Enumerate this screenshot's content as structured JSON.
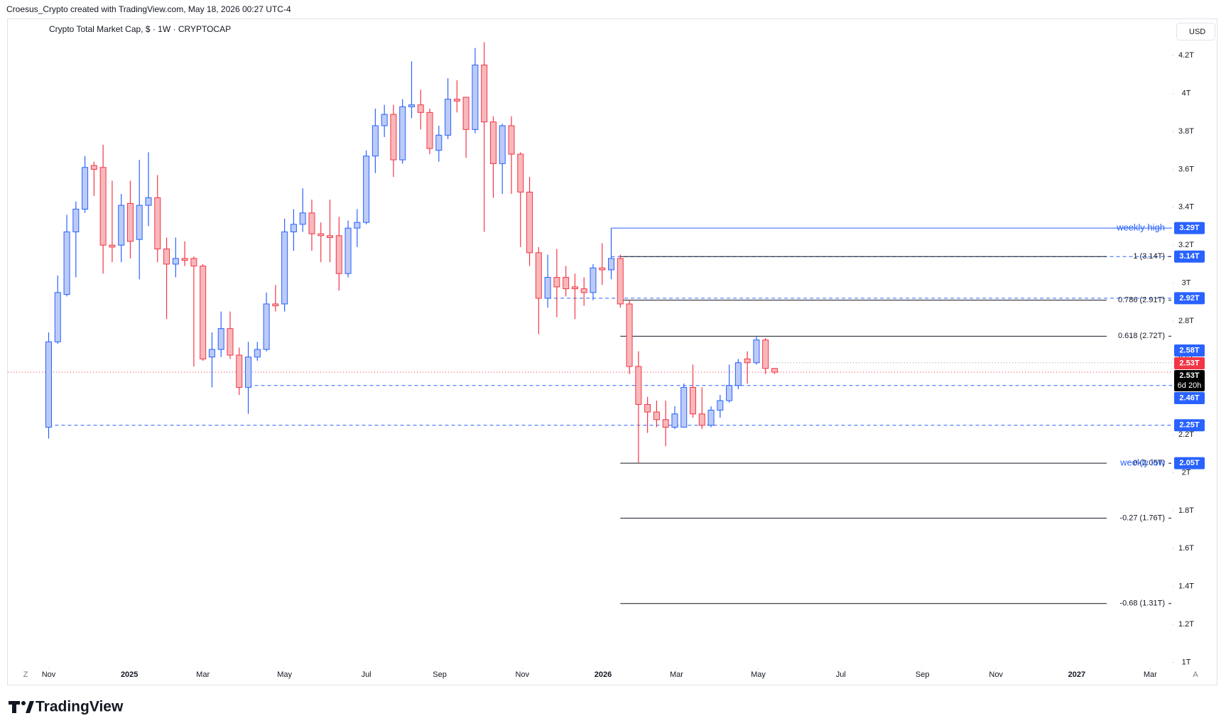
{
  "chart_data": {
    "type": "candlestick",
    "attribution": "Croesus_Crypto created with TradingView.com, May 18, 2026 00:27 UTC-4",
    "title": "Crypto Total Market Cap, $ · 1W · CRYPTOCAP",
    "currency": "USD",
    "z_label": "Z",
    "auto_label": "A",
    "brand": "TradingView",
    "up_color": "#2962ff",
    "up_fill": "#bccbf6",
    "down_color": "#f23645",
    "down_fill": "#f8b8bb",
    "grid": false,
    "xlim": [
      -4.5,
      123.8
    ],
    "xticks": [
      {
        "value": 0,
        "label": "Nov"
      },
      {
        "value": 8.9,
        "label": "2025"
      },
      {
        "value": 17,
        "label": "Mar"
      },
      {
        "value": 26,
        "label": "May"
      },
      {
        "value": 35,
        "label": "Jul"
      },
      {
        "value": 43.1,
        "label": "Sep"
      },
      {
        "value": 52.2,
        "label": "Nov"
      },
      {
        "value": 61.1,
        "label": "2026"
      },
      {
        "value": 69.2,
        "label": "Mar"
      },
      {
        "value": 78.2,
        "label": "May"
      },
      {
        "value": 87.3,
        "label": "Jul"
      },
      {
        "value": 96.3,
        "label": "Sep"
      },
      {
        "value": 104.4,
        "label": "Nov"
      },
      {
        "value": 113.3,
        "label": "2027"
      },
      {
        "value": 121.4,
        "label": "Mar"
      }
    ],
    "ylim": [
      0.97,
      4.39
    ],
    "yticks": [
      {
        "value": 1,
        "label": "1T"
      },
      {
        "value": 1.2,
        "label": "1.2T"
      },
      {
        "value": 1.4,
        "label": "1.4T"
      },
      {
        "value": 1.6,
        "label": "1.6T"
      },
      {
        "value": 1.8,
        "label": "1.8T"
      },
      {
        "value": 2,
        "label": "2T"
      },
      {
        "value": 2.2,
        "label": "2.2T"
      },
      {
        "value": 2.4,
        "label": "2.4T"
      },
      {
        "value": 2.6,
        "label": "2.6T"
      },
      {
        "value": 2.8,
        "label": "2.8T"
      },
      {
        "value": 3,
        "label": "3T"
      },
      {
        "value": 3.2,
        "label": "3.2T"
      },
      {
        "value": 3.4,
        "label": "3.4T"
      },
      {
        "value": 3.6,
        "label": "3.6T"
      },
      {
        "value": 3.8,
        "label": "3.8T"
      },
      {
        "value": 4,
        "label": "4T"
      },
      {
        "value": 4.2,
        "label": "4.2T"
      }
    ],
    "candles": {
      "x": [
        0,
        1,
        2,
        3,
        4,
        5,
        6,
        7,
        8,
        9,
        10,
        11,
        12,
        13,
        14,
        15,
        16,
        17,
        18,
        19,
        20,
        21,
        22,
        23,
        24,
        25,
        26,
        27,
        28,
        29,
        30,
        31,
        32,
        33,
        34,
        35,
        36,
        37,
        38,
        39,
        40,
        41,
        42,
        43,
        44,
        45,
        46,
        47,
        48,
        49,
        50,
        51,
        52,
        53,
        54,
        55,
        56,
        57,
        58,
        59,
        60,
        61,
        62,
        63,
        64,
        65,
        66,
        67,
        68,
        69,
        70,
        71,
        72,
        73,
        74,
        75,
        76,
        77,
        78,
        79,
        80
      ],
      "open": [
        2.24,
        2.69,
        2.94,
        3.27,
        3.39,
        3.62,
        3.61,
        3.2,
        3.2,
        3.42,
        3.23,
        3.41,
        3.45,
        3.18,
        3.1,
        3.13,
        3.13,
        3.09,
        2.61,
        2.65,
        2.76,
        2.62,
        2.45,
        2.61,
        2.65,
        2.89,
        2.89,
        3.27,
        3.31,
        3.37,
        3.26,
        3.25,
        3.25,
        3.05,
        3.29,
        3.32,
        3.67,
        3.83,
        3.89,
        3.65,
        3.93,
        3.94,
        3.9,
        3.7,
        3.78,
        3.97,
        3.98,
        3.81,
        4.15,
        3.85,
        3.63,
        3.83,
        3.68,
        3.48,
        3.16,
        2.92,
        3.03,
        3.03,
        2.98,
        2.97,
        2.95,
        3.08,
        3.07,
        3.13,
        2.89,
        2.56,
        2.36,
        2.32,
        2.28,
        2.24,
        2.24,
        2.45,
        2.31,
        2.25,
        2.33,
        2.38,
        2.46,
        2.6,
        2.58,
        2.7,
        2.55
      ],
      "high": [
        2.74,
        3.04,
        3.36,
        3.43,
        3.67,
        3.64,
        3.73,
        3.54,
        3.47,
        3.54,
        3.65,
        3.69,
        3.57,
        3.24,
        3.24,
        3.22,
        3.14,
        3.1,
        2.74,
        2.85,
        2.85,
        2.66,
        2.69,
        2.69,
        2.95,
        2.99,
        3.34,
        3.39,
        3.5,
        3.44,
        3.32,
        3.44,
        3.35,
        3.33,
        3.39,
        3.7,
        3.92,
        3.94,
        3.94,
        3.97,
        4.17,
        4.02,
        3.92,
        3.83,
        4.08,
        4.07,
        3.98,
        4.24,
        4.27,
        3.88,
        3.84,
        3.88,
        3.69,
        3.56,
        3.19,
        3.15,
        3.18,
        3.09,
        3.05,
        3.03,
        3.1,
        3.21,
        3.29,
        3.15,
        2.91,
        2.64,
        2.4,
        2.38,
        2.38,
        2.35,
        2.47,
        2.57,
        2.45,
        2.35,
        2.41,
        2.57,
        2.6,
        2.64,
        2.72,
        2.71,
        2.55
      ],
      "low": [
        2.18,
        2.68,
        2.93,
        3.03,
        3.37,
        3.46,
        3.05,
        3.11,
        3.11,
        3.13,
        3.02,
        3.3,
        3.11,
        2.81,
        3.03,
        3.09,
        2.56,
        2.59,
        2.45,
        2.61,
        2.6,
        2.41,
        2.31,
        2.59,
        2.64,
        2.85,
        2.85,
        3.17,
        3.27,
        3.17,
        3.11,
        3.11,
        2.96,
        3.03,
        3.19,
        3.31,
        3.58,
        3.77,
        3.56,
        3.63,
        3.87,
        3.81,
        3.68,
        3.64,
        3.76,
        3.9,
        3.66,
        3.79,
        3.27,
        3.45,
        3.47,
        3.47,
        3.19,
        3.09,
        2.73,
        2.87,
        2.82,
        2.93,
        2.81,
        2.88,
        2.91,
        2.99,
        3.02,
        2.87,
        2.52,
        2.05,
        2.21,
        2.24,
        2.14,
        2.23,
        2.24,
        2.29,
        2.23,
        2.24,
        2.29,
        2.37,
        2.44,
        2.47,
        2.57,
        2.52,
        2.52
      ],
      "close": [
        2.69,
        2.95,
        3.27,
        3.39,
        3.61,
        3.6,
        3.2,
        3.19,
        3.41,
        3.22,
        3.41,
        3.45,
        3.18,
        3.1,
        3.13,
        3.12,
        3.09,
        2.6,
        2.65,
        2.76,
        2.62,
        2.45,
        2.61,
        2.65,
        2.89,
        2.88,
        3.27,
        3.31,
        3.37,
        3.26,
        3.25,
        3.24,
        3.05,
        3.29,
        3.32,
        3.67,
        3.83,
        3.89,
        3.65,
        3.93,
        3.94,
        3.9,
        3.71,
        3.78,
        3.97,
        3.96,
        3.81,
        4.15,
        3.85,
        3.63,
        3.83,
        3.68,
        3.48,
        3.16,
        2.92,
        3.03,
        2.98,
        2.97,
        2.97,
        2.95,
        3.08,
        3.07,
        3.13,
        2.89,
        2.56,
        2.36,
        2.32,
        2.28,
        2.24,
        2.31,
        2.45,
        2.31,
        2.25,
        2.33,
        2.38,
        2.46,
        2.58,
        2.58,
        2.7,
        2.55,
        2.53
      ]
    },
    "horizontal_lines": [
      {
        "value": 3.29,
        "from": 62,
        "color": "#2962ff",
        "style": "solid"
      },
      {
        "value": 3.14,
        "from": 62,
        "color": "#2962ff",
        "style": "dashed"
      },
      {
        "value": 2.92,
        "from": 55,
        "color": "#2962ff",
        "style": "dashed"
      },
      {
        "value": 2.46,
        "from": 22,
        "color": "#2962ff",
        "style": "dashed"
      },
      {
        "value": 2.25,
        "from": 0,
        "color": "#2962ff",
        "style": "dashed"
      },
      {
        "value": 2.58,
        "from": 78,
        "color": "#9598a1",
        "style": "dotted"
      },
      {
        "value": 2.53,
        "from": -4.5,
        "color": "#f23645",
        "style": "dotted"
      }
    ],
    "fib_from": 63,
    "fib_to": 116.6,
    "fib_levels": [
      {
        "value": 3.14,
        "label": "1 (3.14T)"
      },
      {
        "value": 2.91,
        "label": "0.786 (2.91T)"
      },
      {
        "value": 2.72,
        "label": "0.618 (2.72T)"
      },
      {
        "value": 2.05,
        "label": "0 (2.05T)"
      },
      {
        "value": 1.76,
        "label": "-0.27 (1.76T)"
      },
      {
        "value": 1.31,
        "label": "-0.68 (1.31T)"
      }
    ],
    "annotations": [
      {
        "value": 3.29,
        "text": "weekly high"
      },
      {
        "value": 2.05,
        "text": "weekly low"
      }
    ],
    "price_tags": [
      {
        "value": 3.29,
        "label": "3.29T",
        "color": "#2962ff"
      },
      {
        "value": 3.14,
        "label": "3.14T",
        "color": "#2962ff"
      },
      {
        "value": 2.92,
        "label": "2.92T",
        "color": "#2962ff"
      },
      {
        "value": 2.58,
        "label": "2.58T",
        "color": "#2962ff"
      },
      {
        "value": 2.53,
        "label": "2.53T",
        "color": "#f23645"
      },
      {
        "value": 2.53,
        "label": "2.53T",
        "color": "#000000",
        "countdown": "6d 20h"
      },
      {
        "value": 2.46,
        "label": "2.46T",
        "color": "#2962ff"
      },
      {
        "value": 2.25,
        "label": "2.25T",
        "color": "#2962ff"
      },
      {
        "value": 2.05,
        "label": "2.05T",
        "color": "#2962ff"
      }
    ]
  }
}
